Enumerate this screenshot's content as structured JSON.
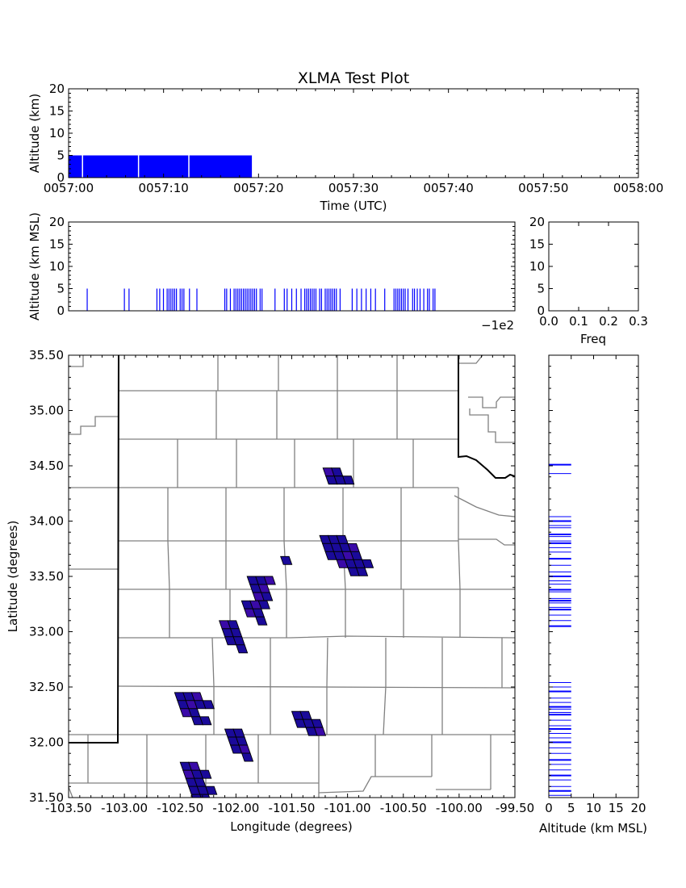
{
  "figure": {
    "title": "XLMA Test Plot"
  },
  "chart_data": [
    {
      "id": "time_height",
      "type": "bar",
      "ylabel": "Altitude (km)",
      "xlabel": "Time (UTC)",
      "ylim": [
        0,
        20
      ],
      "yticks": [
        "0",
        "5",
        "10",
        "15",
        "20"
      ],
      "xlim_sec": [
        0,
        60
      ],
      "xticks": [
        {
          "sec": 0,
          "label": "0057:00"
        },
        {
          "sec": 10,
          "label": "0057:10"
        },
        {
          "sec": 20,
          "label": "0057:20"
        },
        {
          "sec": 30,
          "label": "0057:30"
        },
        {
          "sec": 40,
          "label": "0057:40"
        },
        {
          "sec": 50,
          "label": "0057:50"
        },
        {
          "sec": 60,
          "label": "0058:00"
        }
      ],
      "bar_color": "#0000ff",
      "bar_top_km": 5,
      "bar_span_sec": [
        0,
        19.3
      ],
      "gaps_sec": [
        1.4,
        7.3,
        12.6
      ]
    },
    {
      "id": "lon_height",
      "type": "bar",
      "ylabel": "Altitude (km MSL)",
      "ylim": [
        0,
        20
      ],
      "yticks": [
        "0",
        "5",
        "10",
        "15",
        "20"
      ],
      "offset_text": "−1e2",
      "bar_color": "#0000ff",
      "bar_top_km": 5,
      "lon_samples": [
        -103.5,
        -103.1,
        -103.05,
        -102.75,
        -102.72,
        -102.68,
        -102.64,
        -102.62,
        -102.6,
        -102.58,
        -102.56,
        -102.54,
        -102.5,
        -102.48,
        -102.46,
        -102.4,
        -102.32,
        -102.02,
        -102.0,
        -101.96,
        -101.92,
        -101.9,
        -101.88,
        -101.86,
        -101.84,
        -101.82,
        -101.8,
        -101.78,
        -101.76,
        -101.74,
        -101.72,
        -101.7,
        -101.68,
        -101.64,
        -101.62,
        -101.48,
        -101.38,
        -101.35,
        -101.3,
        -101.25,
        -101.2,
        -101.16,
        -101.14,
        -101.12,
        -101.1,
        -101.08,
        -101.06,
        -101.04,
        -101.0,
        -100.98,
        -100.94,
        -100.92,
        -100.9,
        -100.88,
        -100.86,
        -100.84,
        -100.82,
        -100.78,
        -100.65,
        -100.6,
        -100.55,
        -100.5,
        -100.45,
        -100.4,
        -100.3,
        -100.2,
        -100.18,
        -100.16,
        -100.14,
        -100.12,
        -100.1,
        -100.08,
        -100.05,
        -100.0,
        -99.98,
        -99.95,
        -99.92,
        -99.88,
        -99.84,
        -99.82,
        -99.78,
        -99.76
      ]
    },
    {
      "id": "freq_altitude",
      "type": "bar",
      "xlabel": "Freq",
      "xlim": [
        0,
        0.3
      ],
      "xticks": [
        "0.0",
        "0.1",
        "0.2",
        "0.3"
      ],
      "ylim": [
        0,
        20
      ],
      "yticks": [
        "0",
        "5",
        "10",
        "15",
        "20"
      ],
      "values": []
    },
    {
      "id": "plan_view",
      "type": "scatter",
      "xlabel": "Longitude (degrees)",
      "ylabel": "Latitude (degrees)",
      "xlim": [
        -103.5,
        -99.5
      ],
      "ylim": [
        31.5,
        35.5
      ],
      "xticks": [
        "-103.50",
        "-103.00",
        "-102.50",
        "-102.00",
        "-101.50",
        "-101.00",
        "-100.50",
        "-100.00",
        "-99.50"
      ],
      "yticks": [
        "31.50",
        "32.00",
        "32.50",
        "33.00",
        "33.50",
        "34.00",
        "34.50",
        "35.00",
        "35.50"
      ],
      "cell_color": "#1a0a9a",
      "cell_color_alt": "#3a0aa8",
      "clusters": [
        {
          "lon": -101.22,
          "lat": 34.48,
          "cells": [
            [
              0,
              0
            ],
            [
              1,
              0
            ],
            [
              0,
              1
            ],
            [
              1,
              1
            ],
            [
              2,
              1
            ]
          ]
        },
        {
          "lon": -101.25,
          "lat": 33.87,
          "cells": [
            [
              0,
              0
            ],
            [
              1,
              0
            ],
            [
              2,
              0
            ],
            [
              0,
              1
            ],
            [
              1,
              1
            ],
            [
              2,
              1
            ],
            [
              3,
              1
            ],
            [
              0,
              2
            ],
            [
              1,
              2
            ],
            [
              2,
              2
            ],
            [
              3,
              2
            ],
            [
              1,
              3
            ],
            [
              2,
              3
            ],
            [
              3,
              3
            ],
            [
              4,
              3
            ],
            [
              2,
              4
            ],
            [
              3,
              4
            ]
          ]
        },
        {
          "lon": -101.6,
          "lat": 33.68,
          "cells": [
            [
              0,
              0
            ]
          ]
        },
        {
          "lon": -101.9,
          "lat": 33.5,
          "cells": [
            [
              0,
              0
            ],
            [
              1,
              0
            ],
            [
              2,
              0
            ],
            [
              0,
              1
            ],
            [
              1,
              1
            ],
            [
              0,
              2
            ],
            [
              1,
              2
            ]
          ]
        },
        {
          "lon": -101.95,
          "lat": 33.28,
          "cells": [
            [
              0,
              0
            ],
            [
              1,
              0
            ],
            [
              2,
              0
            ],
            [
              0,
              1
            ],
            [
              1,
              1
            ],
            [
              1,
              2
            ]
          ]
        },
        {
          "lon": -102.15,
          "lat": 33.1,
          "cells": [
            [
              0,
              0
            ],
            [
              1,
              0
            ],
            [
              0,
              1
            ],
            [
              1,
              1
            ],
            [
              0,
              2
            ],
            [
              1,
              2
            ],
            [
              1,
              3
            ]
          ]
        },
        {
          "lon": -101.5,
          "lat": 32.28,
          "cells": [
            [
              0,
              0
            ],
            [
              1,
              0
            ],
            [
              0,
              1
            ],
            [
              1,
              1
            ],
            [
              2,
              1
            ],
            [
              1,
              2
            ],
            [
              2,
              2
            ]
          ]
        },
        {
          "lon": -102.1,
          "lat": 32.12,
          "cells": [
            [
              0,
              0
            ],
            [
              1,
              0
            ],
            [
              0,
              1
            ],
            [
              1,
              1
            ],
            [
              0,
              2
            ],
            [
              1,
              2
            ],
            [
              1,
              3
            ]
          ]
        },
        {
          "lon": -102.55,
          "lat": 32.45,
          "cells": [
            [
              0,
              0
            ],
            [
              1,
              0
            ],
            [
              2,
              0
            ],
            [
              0,
              1
            ],
            [
              1,
              1
            ],
            [
              2,
              1
            ],
            [
              3,
              1
            ],
            [
              0,
              2
            ],
            [
              1,
              2
            ],
            [
              1,
              3
            ],
            [
              2,
              3
            ]
          ]
        },
        {
          "lon": -102.5,
          "lat": 31.82,
          "cells": [
            [
              0,
              0
            ],
            [
              1,
              0
            ],
            [
              0,
              1
            ],
            [
              1,
              1
            ],
            [
              2,
              1
            ],
            [
              0,
              2
            ],
            [
              1,
              2
            ],
            [
              0,
              3
            ],
            [
              1,
              3
            ],
            [
              2,
              3
            ],
            [
              0,
              4
            ],
            [
              1,
              4
            ]
          ]
        }
      ]
    },
    {
      "id": "altitude_histogram_side",
      "type": "bar",
      "xlabel": "Altitude (km MSL)",
      "xlim": [
        0,
        20
      ],
      "xticks": [
        "0",
        "5",
        "10",
        "15",
        "20"
      ],
      "bar_color": "#0000ff",
      "bar_len_km": 5,
      "lat_samples": [
        34.51,
        34.43,
        34.04,
        34.0,
        33.96,
        33.94,
        33.88,
        33.86,
        33.82,
        33.8,
        33.76,
        33.72,
        33.66,
        33.6,
        33.54,
        33.5,
        33.46,
        33.43,
        33.38,
        33.36,
        33.3,
        33.28,
        33.26,
        33.22,
        33.2,
        33.15,
        33.1,
        33.05,
        32.54,
        32.5,
        32.46,
        32.4,
        32.36,
        32.32,
        32.3,
        32.27,
        32.25,
        32.2,
        32.15,
        32.12,
        32.08,
        32.04,
        32.0,
        31.95,
        31.9,
        31.84,
        31.8,
        31.75,
        31.7,
        31.66,
        31.6,
        31.56,
        31.52
      ]
    }
  ]
}
